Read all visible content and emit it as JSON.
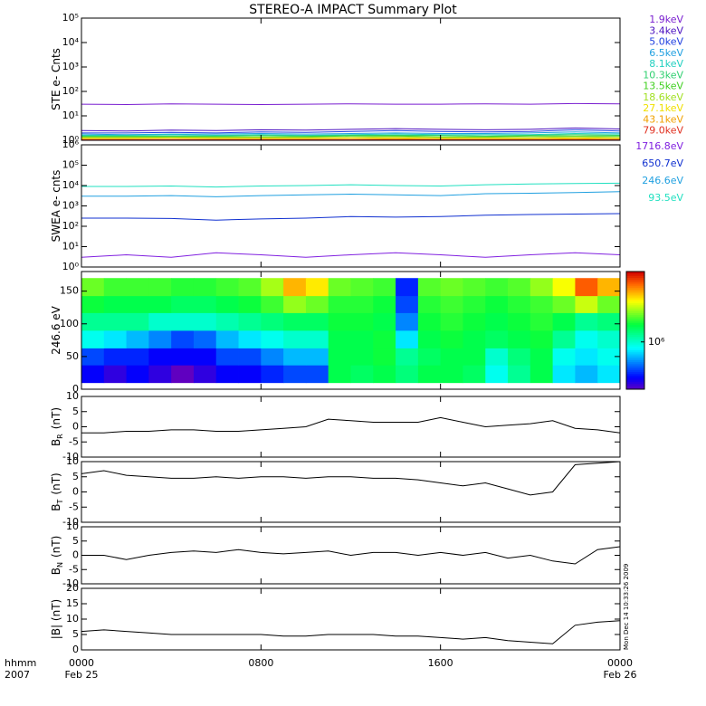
{
  "title": "STEREO-A IMPACT Summary Plot",
  "timestamp": "Mon Dec 14 10:33:26 2009",
  "xaxis": {
    "xlim": [
      0,
      24
    ],
    "ticks": [
      {
        "value": 0,
        "label": "0000"
      },
      {
        "value": 8,
        "label": "0800"
      },
      {
        "value": 16,
        "label": "1600"
      },
      {
        "value": 24,
        "label": "0000"
      }
    ],
    "dates": [
      {
        "value": 0,
        "label": "Feb 25"
      },
      {
        "value": 24,
        "label": "Feb 26"
      }
    ],
    "unit_label": "hhmm",
    "year": "2007"
  },
  "chart_data": [
    {
      "type": "line",
      "ylabel": "STE e- Cnts",
      "log": true,
      "ylim": [
        1,
        100000
      ],
      "yticks": [
        {
          "value": 1,
          "label": "10⁰"
        },
        {
          "value": 10,
          "label": "10¹"
        },
        {
          "value": 100,
          "label": "10²"
        },
        {
          "value": 1000,
          "label": "10³"
        },
        {
          "value": 10000,
          "label": "10⁴"
        },
        {
          "value": 100000,
          "label": "10⁵"
        }
      ],
      "x": [
        0,
        2,
        4,
        6,
        8,
        10,
        12,
        14,
        16,
        18,
        20,
        22,
        24
      ],
      "series": [
        {
          "name": "1.9keV",
          "color": "#7a1fd0",
          "values": [
            30,
            29,
            31,
            30,
            29,
            30,
            31,
            30,
            30,
            31,
            30,
            32,
            31
          ]
        },
        {
          "name": "3.4keV",
          "color": "#4a10c0",
          "values": [
            2.5,
            2.4,
            2.6,
            2.5,
            2.7,
            2.6,
            2.8,
            3,
            2.8,
            2.7,
            2.8,
            3.2,
            2.9
          ]
        },
        {
          "name": "5.0keV",
          "color": "#2040e0",
          "values": [
            2,
            2,
            2.1,
            2,
            2.2,
            2.1,
            2.3,
            2.5,
            2.3,
            2.2,
            2.3,
            2.7,
            2.4
          ]
        },
        {
          "name": "6.5keV",
          "color": "#20a0e0",
          "values": [
            1.8,
            1.7,
            1.8,
            1.8,
            1.9,
            1.8,
            1.9,
            2,
            1.9,
            1.9,
            2,
            2.2,
            2
          ]
        },
        {
          "name": "8.1keV",
          "color": "#20d0c0",
          "values": [
            1.6,
            1.6,
            1.7,
            1.6,
            1.7,
            1.6,
            1.7,
            1.8,
            1.7,
            1.7,
            1.7,
            1.9,
            1.8
          ]
        },
        {
          "name": "10.3keV",
          "color": "#30d070",
          "values": [
            1.5,
            1.5,
            1.5,
            1.5,
            1.6,
            1.5,
            1.6,
            1.6,
            1.6,
            1.5,
            1.6,
            1.7,
            1.6
          ]
        },
        {
          "name": "13.5keV",
          "color": "#40d020",
          "values": [
            1.4,
            1.4,
            1.4,
            1.4,
            1.4,
            1.4,
            1.5,
            1.5,
            1.4,
            1.4,
            1.5,
            1.5,
            1.5
          ]
        },
        {
          "name": "18.6keV",
          "color": "#a0e020",
          "values": [
            1.3,
            1.3,
            1.3,
            1.3,
            1.3,
            1.3,
            1.3,
            1.4,
            1.3,
            1.3,
            1.3,
            1.4,
            1.3
          ]
        },
        {
          "name": "27.1keV",
          "color": "#f0e000",
          "values": [
            1.2,
            1.2,
            1.25,
            1.2,
            1.2,
            1.2,
            1.25,
            1.25,
            1.2,
            1.2,
            1.2,
            1.25,
            1.2
          ]
        },
        {
          "name": "43.1keV",
          "color": "#f0a000",
          "values": [
            1.1,
            1.1,
            1.1,
            1.1,
            1.1,
            1.1,
            1.1,
            1.15,
            1.1,
            1.1,
            1.1,
            1.15,
            1.1
          ]
        },
        {
          "name": "79.0keV",
          "color": "#e03020",
          "values": [
            1.05,
            1.05,
            1.05,
            1.05,
            1.05,
            1.05,
            1.05,
            1.05,
            1.05,
            1.05,
            1.05,
            1.05,
            1.05
          ]
        }
      ]
    },
    {
      "type": "line",
      "ylabel": "SWEA e- cnts",
      "log": true,
      "ylim": [
        1,
        1000000
      ],
      "yticks": [
        {
          "value": 1,
          "label": "10⁰"
        },
        {
          "value": 10,
          "label": "10¹"
        },
        {
          "value": 100,
          "label": "10²"
        },
        {
          "value": 1000,
          "label": "10³"
        },
        {
          "value": 10000,
          "label": "10⁴"
        },
        {
          "value": 100000,
          "label": "10⁵"
        },
        {
          "value": 1000000,
          "label": "10⁶"
        }
      ],
      "x": [
        0,
        2,
        4,
        6,
        8,
        10,
        12,
        14,
        16,
        18,
        20,
        22,
        24
      ],
      "series": [
        {
          "name": "1716.8eV",
          "color": "#8020e0",
          "values": [
            3,
            4,
            3,
            5,
            4,
            3,
            4,
            5,
            4,
            3,
            4,
            5,
            4
          ]
        },
        {
          "name": "650.7eV",
          "color": "#1030d0",
          "values": [
            250,
            250,
            240,
            200,
            230,
            250,
            300,
            280,
            300,
            350,
            380,
            400,
            420
          ]
        },
        {
          "name": "246.6eV",
          "color": "#20a0e0",
          "values": [
            3000,
            3000,
            3200,
            2800,
            3200,
            3500,
            3800,
            3500,
            3200,
            4000,
            4200,
            4500,
            5000
          ]
        },
        {
          "name": "93.5eV",
          "color": "#20e0c0",
          "values": [
            9000,
            9000,
            9500,
            8500,
            9500,
            10000,
            11000,
            10000,
            9500,
            11000,
            12000,
            12500,
            13000
          ]
        }
      ]
    },
    {
      "type": "heatmap",
      "ylabel": "246.6 eV",
      "ylim": [
        0,
        180
      ],
      "yticks": [
        0,
        50,
        100,
        150
      ],
      "colormap": "jet",
      "zlim": [
        300000,
        6000000
      ],
      "zlog": true,
      "zticks": [
        {
          "value": 1000000,
          "label": "10⁶"
        }
      ],
      "x_bins": [
        0,
        1,
        2,
        3,
        4,
        5,
        6,
        7,
        8,
        9,
        10,
        11,
        12,
        13,
        14,
        15,
        16,
        17,
        18,
        19,
        20,
        21,
        22,
        23,
        24
      ],
      "y_bins": [
        10,
        37,
        63,
        90,
        117,
        143,
        170
      ],
      "z": [
        [
          400000,
          350000,
          400000,
          350000,
          300000,
          350000,
          400000,
          400000,
          450000,
          500000,
          500000,
          1500000,
          1400000,
          1500000,
          1300000,
          1500000,
          1500000,
          1400000,
          900000,
          1200000,
          1500000,
          800000,
          700000,
          800000
        ],
        [
          500000,
          450000,
          450000,
          400000,
          400000,
          400000,
          500000,
          500000,
          600000,
          700000,
          700000,
          1500000,
          1500000,
          1600000,
          1200000,
          1400000,
          1500000,
          1500000,
          1000000,
          1300000,
          1500000,
          900000,
          800000,
          900000
        ],
        [
          900000,
          800000,
          700000,
          600000,
          500000,
          550000,
          700000,
          800000,
          900000,
          1000000,
          1000000,
          1500000,
          1500000,
          1600000,
          800000,
          1500000,
          1600000,
          1500000,
          1400000,
          1500000,
          1600000,
          1200000,
          900000,
          1000000
        ],
        [
          1200000,
          1200000,
          1200000,
          1000000,
          1000000,
          1000000,
          1100000,
          1200000,
          1300000,
          1400000,
          1400000,
          1600000,
          1600000,
          1500000,
          600000,
          1600000,
          1700000,
          1600000,
          1500000,
          1600000,
          1700000,
          1500000,
          1200000,
          1300000
        ],
        [
          1600000,
          1500000,
          1500000,
          1500000,
          1400000,
          1400000,
          1500000,
          1600000,
          1800000,
          2200000,
          2000000,
          1700000,
          1700000,
          1600000,
          500000,
          1700000,
          1800000,
          1700000,
          1600000,
          1700000,
          1800000,
          2000000,
          2500000,
          2000000
        ],
        [
          2000000,
          1800000,
          1800000,
          1800000,
          1700000,
          1700000,
          1800000,
          1900000,
          2300000,
          3500000,
          3000000,
          2000000,
          1900000,
          1800000,
          450000,
          1900000,
          2000000,
          1900000,
          1800000,
          1900000,
          2200000,
          2800000,
          4500000,
          3500000
        ]
      ]
    },
    {
      "type": "line",
      "ylabel": "B",
      "ylabel_sub": "R",
      "ylabel_unit": "(nT)",
      "ylim": [
        -10,
        10
      ],
      "yticks": [
        -10,
        -5,
        0,
        5,
        10
      ],
      "x": [
        0,
        1,
        2,
        3,
        4,
        5,
        6,
        7,
        8,
        9,
        10,
        11,
        12,
        13,
        14,
        15,
        16,
        17,
        18,
        19,
        20,
        21,
        22,
        23,
        24
      ],
      "series": [
        {
          "color": "#000000",
          "values": [
            -2,
            -2,
            -1.5,
            -1.5,
            -1,
            -1,
            -1.5,
            -1.5,
            -1,
            -0.5,
            0,
            2.5,
            2,
            1.5,
            1.5,
            1.5,
            3,
            1.5,
            0,
            0.5,
            1,
            2,
            -0.5,
            -1,
            -2
          ]
        }
      ]
    },
    {
      "type": "line",
      "ylabel": "B",
      "ylabel_sub": "T",
      "ylabel_unit": "(nT)",
      "ylim": [
        -10,
        10
      ],
      "yticks": [
        -10,
        -5,
        0,
        5,
        10
      ],
      "x": [
        0,
        1,
        2,
        3,
        4,
        5,
        6,
        7,
        8,
        9,
        10,
        11,
        12,
        13,
        14,
        15,
        16,
        17,
        18,
        19,
        20,
        21,
        22,
        23,
        24
      ],
      "series": [
        {
          "color": "#000000",
          "values": [
            6,
            7,
            5.5,
            5,
            4.5,
            4.5,
            5,
            4.5,
            5,
            5,
            4.5,
            5,
            5,
            4.5,
            4.5,
            4,
            3,
            2,
            3,
            1,
            -1,
            0,
            9,
            9.5,
            10
          ]
        }
      ]
    },
    {
      "type": "line",
      "ylabel": "B",
      "ylabel_sub": "N",
      "ylabel_unit": "(nT)",
      "ylim": [
        -10,
        10
      ],
      "yticks": [
        -10,
        -5,
        0,
        5,
        10
      ],
      "x": [
        0,
        1,
        2,
        3,
        4,
        5,
        6,
        7,
        8,
        9,
        10,
        11,
        12,
        13,
        14,
        15,
        16,
        17,
        18,
        19,
        20,
        21,
        22,
        23,
        24
      ],
      "series": [
        {
          "color": "#000000",
          "values": [
            0,
            0,
            -1.5,
            0,
            1,
            1.5,
            1,
            2,
            1,
            0.5,
            1,
            1.5,
            0,
            1,
            1,
            0,
            1,
            0,
            1,
            -1,
            0,
            -2,
            -3,
            2,
            3
          ]
        }
      ]
    },
    {
      "type": "line",
      "ylabel": "|B| (nT)",
      "ylim": [
        0,
        20
      ],
      "yticks": [
        0,
        5,
        10,
        15,
        20
      ],
      "x": [
        0,
        1,
        2,
        3,
        4,
        5,
        6,
        7,
        8,
        9,
        10,
        11,
        12,
        13,
        14,
        15,
        16,
        17,
        18,
        19,
        20,
        21,
        22,
        23,
        24
      ],
      "series": [
        {
          "color": "#000000",
          "values": [
            6,
            6.5,
            6,
            5.5,
            5,
            5,
            5,
            5,
            5,
            4.5,
            4.5,
            5,
            5,
            5,
            4.5,
            4.5,
            4,
            3.5,
            4,
            3,
            2.5,
            2,
            8,
            9,
            9.5
          ]
        }
      ]
    }
  ]
}
